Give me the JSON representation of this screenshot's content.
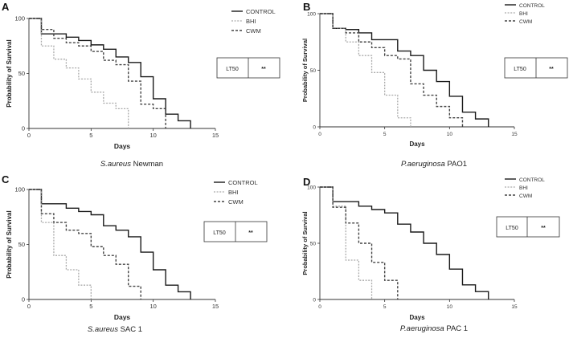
{
  "charts": [
    {
      "letter": "A",
      "caption_italic": "S.aureus",
      "caption_rest": " Newman",
      "ylabel": "Probability of Survival",
      "xlabel": "Days",
      "legend": [
        "CONTROL",
        "BHI",
        "CWM"
      ],
      "lt_label": "LT50",
      "lt_value": "**"
    },
    {
      "letter": "B",
      "caption_italic": "P.aeruginosa",
      "caption_rest": " PAO1",
      "ylabel": "Probability of Survival",
      "xlabel": "Days",
      "legend": [
        "CONTROL",
        "BHI",
        "CWM"
      ],
      "lt_label": "LT50",
      "lt_value": "**"
    },
    {
      "letter": "C",
      "caption_italic": "S.aureus",
      "caption_rest": " SAC 1",
      "ylabel": "Probability of Survival",
      "xlabel": "Days",
      "legend": [
        "CONTROL",
        "BHI",
        "CWM"
      ],
      "lt_label": "LT50",
      "lt_value": "**"
    },
    {
      "letter": "D",
      "caption_italic": "P.aeruginosa",
      "caption_rest": " PAC 1",
      "ylabel": "Probability of Survival",
      "xlabel": "Days",
      "legend": [
        "CONTROL",
        "BHI",
        "CWM"
      ],
      "lt_label": "LT50",
      "lt_value": "**"
    }
  ],
  "colors": {
    "control": "#1a1a1a",
    "bhi": "#aaaaaa",
    "cwm": "#444444",
    "axis": "#333333"
  },
  "chart_data": [
    {
      "type": "line",
      "title": "",
      "xlabel": "Days",
      "ylabel": "Probability of Survival",
      "xlim": [
        0,
        15
      ],
      "ylim": [
        0,
        100
      ],
      "xticks": [
        0,
        5,
        10,
        15
      ],
      "yticks": [
        0,
        50,
        100
      ],
      "grid": false,
      "legend_position": "top-right",
      "series": [
        {
          "name": "CONTROL",
          "style": "solid",
          "x": [
            0,
            1,
            3,
            4,
            5,
            6,
            7,
            8,
            9,
            10,
            11,
            12,
            13
          ],
          "y": [
            100,
            86,
            83,
            80,
            76,
            72,
            65,
            60,
            47,
            27,
            13,
            7,
            0
          ]
        },
        {
          "name": "BHI",
          "style": "dotted",
          "x": [
            0,
            1,
            2,
            3,
            4,
            5,
            6,
            7,
            8
          ],
          "y": [
            100,
            75,
            63,
            55,
            45,
            33,
            23,
            18,
            0
          ]
        },
        {
          "name": "CWM",
          "style": "dashed",
          "x": [
            0,
            1,
            2,
            3,
            4,
            5,
            6,
            7,
            8,
            9,
            10,
            11
          ],
          "y": [
            100,
            90,
            82,
            78,
            75,
            70,
            62,
            58,
            43,
            22,
            18,
            0
          ]
        }
      ]
    },
    {
      "type": "line",
      "title": "",
      "xlabel": "Days",
      "ylabel": "Probability of Survival",
      "xlim": [
        0,
        15
      ],
      "ylim": [
        0,
        100
      ],
      "xticks": [
        0,
        5,
        10,
        15
      ],
      "yticks": [
        0,
        50,
        100
      ],
      "grid": false,
      "legend_position": "top-right",
      "series": [
        {
          "name": "CONTROL",
          "style": "solid",
          "x": [
            0,
            1,
            2,
            3,
            4,
            6,
            7,
            8,
            9,
            10,
            11,
            12,
            13
          ],
          "y": [
            100,
            87,
            86,
            83,
            77,
            67,
            63,
            50,
            40,
            27,
            13,
            7,
            0
          ]
        },
        {
          "name": "BHI",
          "style": "dotted",
          "x": [
            0,
            1,
            2,
            3,
            4,
            5,
            6,
            7
          ],
          "y": [
            100,
            87,
            75,
            63,
            48,
            28,
            8,
            0
          ]
        },
        {
          "name": "CWM",
          "style": "dashed",
          "x": [
            0,
            1,
            2,
            3,
            4,
            5,
            6,
            7,
            8,
            9,
            10,
            11
          ],
          "y": [
            100,
            87,
            83,
            75,
            70,
            63,
            60,
            38,
            28,
            18,
            8,
            0
          ]
        }
      ]
    },
    {
      "type": "line",
      "title": "",
      "xlabel": "Days",
      "ylabel": "Probability of Survival",
      "xlim": [
        0,
        15
      ],
      "ylim": [
        0,
        100
      ],
      "xticks": [
        0,
        5,
        10,
        15
      ],
      "yticks": [
        0,
        50,
        100
      ],
      "grid": false,
      "legend_position": "top-right",
      "series": [
        {
          "name": "CONTROL",
          "style": "solid",
          "x": [
            0,
            1,
            3,
            4,
            5,
            6,
            7,
            8,
            9,
            10,
            11,
            12,
            13
          ],
          "y": [
            100,
            87,
            83,
            80,
            77,
            67,
            63,
            57,
            43,
            27,
            13,
            7,
            0
          ]
        },
        {
          "name": "BHI",
          "style": "dotted",
          "x": [
            0,
            1,
            2,
            3,
            4,
            5
          ],
          "y": [
            100,
            70,
            40,
            27,
            13,
            0
          ]
        },
        {
          "name": "CWM",
          "style": "dashed",
          "x": [
            0,
            1,
            2,
            3,
            4,
            5,
            6,
            7,
            8,
            9
          ],
          "y": [
            100,
            78,
            70,
            63,
            60,
            48,
            40,
            32,
            12,
            0
          ]
        }
      ]
    },
    {
      "type": "line",
      "title": "",
      "xlabel": "Days",
      "ylabel": "Probability of Survival",
      "xlim": [
        0,
        15
      ],
      "ylim": [
        0,
        100
      ],
      "xticks": [
        0,
        5,
        10,
        15
      ],
      "yticks": [
        0,
        50,
        100
      ],
      "grid": false,
      "legend_position": "top-right",
      "series": [
        {
          "name": "CONTROL",
          "style": "solid",
          "x": [
            0,
            1,
            3,
            4,
            5,
            6,
            7,
            8,
            9,
            10,
            11,
            12,
            13
          ],
          "y": [
            100,
            87,
            83,
            80,
            77,
            67,
            60,
            50,
            40,
            27,
            13,
            7,
            0
          ]
        },
        {
          "name": "BHI",
          "style": "dotted",
          "x": [
            0,
            1,
            2,
            3,
            4
          ],
          "y": [
            100,
            83,
            35,
            17,
            0
          ]
        },
        {
          "name": "CWM",
          "style": "dashed",
          "x": [
            0,
            1,
            2,
            3,
            4,
            5,
            6
          ],
          "y": [
            100,
            82,
            68,
            50,
            33,
            17,
            0
          ]
        }
      ]
    }
  ]
}
